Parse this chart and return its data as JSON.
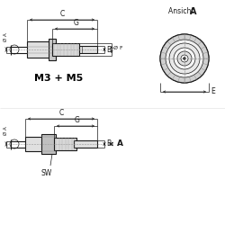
{
  "bg_color": "#ffffff",
  "line_color": "#1a1a1a",
  "text_color": "#000000",
  "title1": "M3 + M5",
  "label_C": "C",
  "label_G": "G",
  "label_B": "B",
  "label_F": "Ø F",
  "label_A_dim": "Ø A",
  "label_SW": "SW",
  "label_A_arrow": "A",
  "label_E": "E",
  "ansicht": "Ansicht ",
  "ansicht_A": "A"
}
